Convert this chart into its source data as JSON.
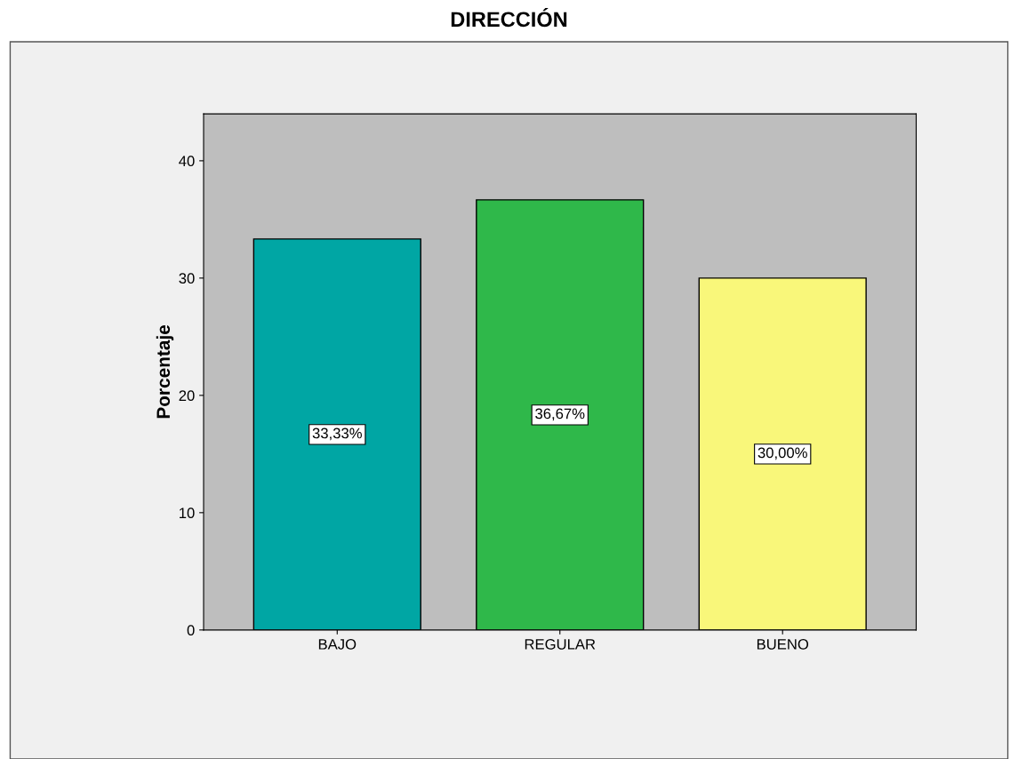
{
  "chart_data": {
    "type": "bar",
    "title": "DIRECCIÓN",
    "ylabel": "Porcentaje",
    "categories": [
      "BAJO",
      "REGULAR",
      "BUENO"
    ],
    "values": [
      33.33,
      36.67,
      30.0
    ],
    "colors": [
      "#00a6a4",
      "#2fb84a",
      "#f9f77a"
    ],
    "value_labels": [
      "33,33%",
      "36,67%",
      "30,00%"
    ],
    "ylim": [
      0,
      44
    ],
    "yticks": [
      0,
      10,
      20,
      30,
      40
    ],
    "grid": false
  }
}
